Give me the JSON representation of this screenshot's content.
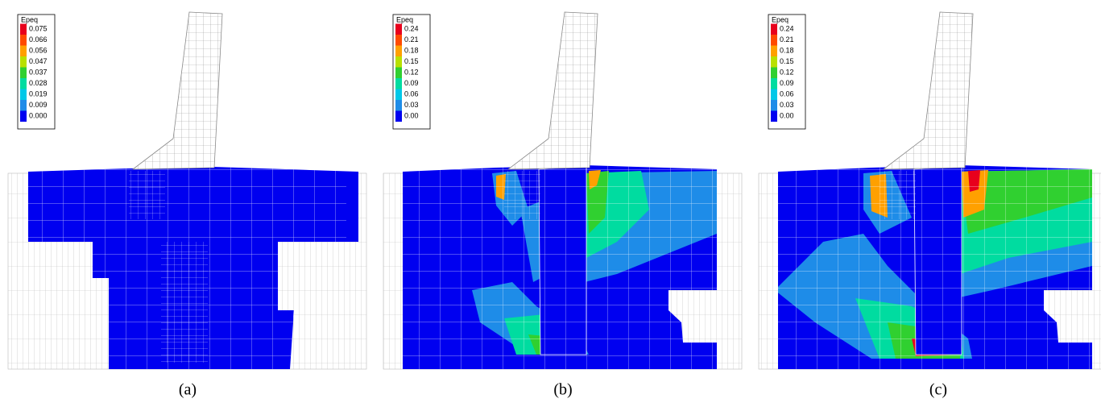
{
  "panels": [
    {
      "legend": {
        "title": "Epeq",
        "labels": [
          "0.075",
          "0.066",
          "0.056",
          "0.047",
          "0.037",
          "0.028",
          "0.019",
          "0.009",
          "0.000"
        ]
      },
      "caption": "(a)"
    },
    {
      "legend": {
        "title": "Epeq",
        "labels": [
          "0.24",
          "0.21",
          "0.18",
          "0.15",
          "0.12",
          "0.09",
          "0.06",
          "0.03",
          "0.00"
        ]
      },
      "caption": "(b)"
    },
    {
      "legend": {
        "title": "Epeq",
        "labels": [
          "0.24",
          "0.21",
          "0.18",
          "0.15",
          "0.12",
          "0.09",
          "0.06",
          "0.03",
          "0.00"
        ]
      },
      "caption": "(c)"
    }
  ]
}
